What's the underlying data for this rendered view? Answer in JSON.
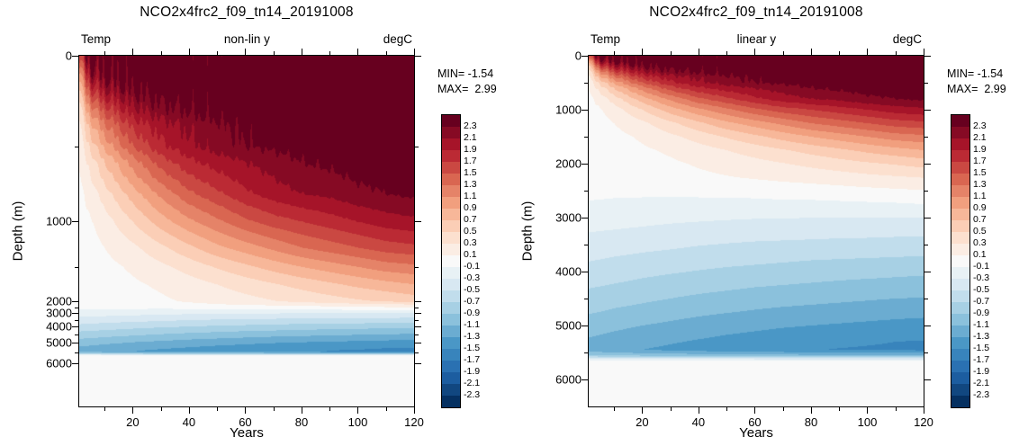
{
  "panels": [
    {
      "title": "NCO2x4frc2_f09_tn14_20191008",
      "var_tag": "Temp",
      "axis_tag": "non-lin y",
      "units_tag": "degC",
      "ylabel": "Depth (m)",
      "xlabel": "Years",
      "min_text": "MIN= -1.54",
      "max_text": "MAX=  2.99"
    },
    {
      "title": "NCO2x4frc2_f09_tn14_20191008",
      "var_tag": "Temp",
      "axis_tag": "linear y",
      "units_tag": "degC",
      "ylabel": "Depth (m)",
      "xlabel": "Years",
      "min_text": "MIN= -1.54",
      "max_text": "MAX=  2.99"
    }
  ],
  "chart_data": {
    "type": "heatmap",
    "title": "NCO2x4frc2_f09_tn14_20191008",
    "variable": "Temp",
    "units": "degC",
    "xlabel": "Years",
    "ylabel": "Depth (m)",
    "data_min": -1.54,
    "data_max": 2.99,
    "x_range": [
      1,
      120
    ],
    "x_major_ticks": [
      20,
      40,
      60,
      80,
      100,
      120
    ],
    "x_minor_ticks": [
      10,
      30,
      50,
      70,
      90,
      110
    ],
    "depth_range": [
      0,
      6500
    ],
    "depth_major_ticks": [
      0,
      1000,
      2000,
      3000,
      4000,
      5000,
      6000
    ],
    "depth_minor_ticks": [
      500,
      1500,
      2500,
      3500,
      4500,
      5500
    ],
    "contour_min": -2.3,
    "contour_max": 2.3,
    "contour_step": 0.2,
    "colorbar_tick_labels": [
      "2.3",
      "2.1",
      "1.9",
      "1.7",
      "1.5",
      "1.3",
      "1.1",
      "0.9",
      "0.7",
      "0.5",
      "0.3",
      "0.1",
      "-0.1",
      "-0.3",
      "-0.5",
      "-0.7",
      "-0.9",
      "-1.1",
      "-1.3",
      "-1.5",
      "-1.7",
      "-1.9",
      "-2.1",
      "-2.3"
    ],
    "palette_anchors": [
      "#053061",
      "#2166ac",
      "#4393c4",
      "#92c5de",
      "#d1e5f0",
      "#f9f9f9",
      "#fddbc7",
      "#f4a582",
      "#d6604d",
      "#b2182b",
      "#67001f"
    ],
    "legend_position": "right",
    "panels": [
      {
        "label": "non-lin y",
        "y_scale": "nonlinear",
        "y_control_points": [
          [
            0,
            0
          ],
          [
            100,
            0.055
          ],
          [
            200,
            0.105
          ],
          [
            300,
            0.152
          ],
          [
            400,
            0.2
          ],
          [
            500,
            0.258
          ],
          [
            600,
            0.302
          ],
          [
            700,
            0.35
          ],
          [
            800,
            0.394
          ],
          [
            1000,
            0.473
          ],
          [
            1250,
            0.547
          ],
          [
            1500,
            0.602
          ],
          [
            1750,
            0.652
          ],
          [
            2000,
            0.7
          ],
          [
            2500,
            0.718
          ],
          [
            3000,
            0.734
          ],
          [
            3500,
            0.753
          ],
          [
            4000,
            0.773
          ],
          [
            4500,
            0.794
          ],
          [
            5000,
            0.817
          ],
          [
            5500,
            0.845
          ],
          [
            6000,
            0.876
          ],
          [
            6500,
            1.0
          ]
        ]
      },
      {
        "label": "linear y",
        "y_scale": "linear"
      }
    ],
    "times": [
      0,
      5,
      10,
      20,
      30,
      40,
      50,
      60,
      70,
      80,
      90,
      100,
      110,
      120
    ],
    "depths": [
      0,
      100,
      200,
      300,
      400,
      500,
      600,
      800,
      1000,
      1250,
      1500,
      1750,
      2000,
      2250,
      2500,
      2750,
      3000,
      3250,
      3500,
      3750,
      4000,
      4250,
      4500,
      4750,
      5000,
      5150,
      5300,
      5450,
      5550,
      5650,
      6000,
      6500
    ],
    "values": [
      [
        1.6,
        2.5,
        2.6,
        2.7,
        2.75,
        2.8,
        2.82,
        2.85,
        2.87,
        2.9,
        2.9,
        2.92,
        2.95,
        2.99
      ],
      [
        0.8,
        2.1,
        2.35,
        2.55,
        2.6,
        2.65,
        2.7,
        2.72,
        2.75,
        2.78,
        2.8,
        2.8,
        2.82,
        2.85
      ],
      [
        0.4,
        1.6,
        2.0,
        2.3,
        2.45,
        2.5,
        2.55,
        2.6,
        2.62,
        2.65,
        2.67,
        2.7,
        2.7,
        2.72
      ],
      [
        0.2,
        1.15,
        1.6,
        2.05,
        2.25,
        2.35,
        2.45,
        2.5,
        2.52,
        2.55,
        2.57,
        2.6,
        2.6,
        2.62
      ],
      [
        0.12,
        0.8,
        1.25,
        1.75,
        2.0,
        2.15,
        2.25,
        2.35,
        2.4,
        2.45,
        2.5,
        2.5,
        2.52,
        2.55
      ],
      [
        0.08,
        0.55,
        0.95,
        1.5,
        1.85,
        2.05,
        2.2,
        2.3,
        2.35,
        2.4,
        2.45,
        2.5,
        2.5,
        2.5
      ],
      [
        0.05,
        0.38,
        0.7,
        1.2,
        1.6,
        1.85,
        2.0,
        2.1,
        2.2,
        2.3,
        2.35,
        2.4,
        2.4,
        2.45
      ],
      [
        0.02,
        0.18,
        0.4,
        0.8,
        1.15,
        1.45,
        1.65,
        1.85,
        2.0,
        2.1,
        2.15,
        2.25,
        2.3,
        2.35
      ],
      [
        0.0,
        0.08,
        0.2,
        0.5,
        0.8,
        1.05,
        1.25,
        1.45,
        1.6,
        1.7,
        1.8,
        1.9,
        2.0,
        2.05
      ],
      [
        0.0,
        0.03,
        0.1,
        0.25,
        0.45,
        0.65,
        0.85,
        1.0,
        1.15,
        1.3,
        1.4,
        1.5,
        1.6,
        1.65
      ],
      [
        0.0,
        0.01,
        0.04,
        0.13,
        0.25,
        0.38,
        0.52,
        0.65,
        0.78,
        0.9,
        1.0,
        1.1,
        1.2,
        1.25
      ],
      [
        0.0,
        0.0,
        0.02,
        0.07,
        0.13,
        0.21,
        0.3,
        0.39,
        0.48,
        0.57,
        0.66,
        0.75,
        0.83,
        0.9
      ],
      [
        0.0,
        0.0,
        0.0,
        0.03,
        0.07,
        0.12,
        0.17,
        0.23,
        0.29,
        0.35,
        0.41,
        0.47,
        0.52,
        0.58
      ],
      [
        0.0,
        0.0,
        0.0,
        0.01,
        0.03,
        0.06,
        0.09,
        0.12,
        0.15,
        0.18,
        0.21,
        0.25,
        0.28,
        0.31
      ],
      [
        -0.04,
        -0.04,
        -0.05,
        -0.05,
        -0.05,
        -0.04,
        -0.03,
        -0.02,
        0.0,
        0.01,
        0.03,
        0.05,
        0.07,
        0.09
      ],
      [
        -0.12,
        -0.13,
        -0.14,
        -0.15,
        -0.16,
        -0.16,
        -0.16,
        -0.16,
        -0.15,
        -0.15,
        -0.14,
        -0.13,
        -0.12,
        -0.1
      ],
      [
        -0.2,
        -0.21,
        -0.22,
        -0.24,
        -0.26,
        -0.27,
        -0.28,
        -0.29,
        -0.29,
        -0.3,
        -0.3,
        -0.3,
        -0.3,
        -0.3
      ],
      [
        -0.29,
        -0.3,
        -0.31,
        -0.33,
        -0.35,
        -0.37,
        -0.39,
        -0.4,
        -0.41,
        -0.42,
        -0.43,
        -0.43,
        -0.44,
        -0.44
      ],
      [
        -0.38,
        -0.39,
        -0.41,
        -0.44,
        -0.46,
        -0.49,
        -0.51,
        -0.53,
        -0.54,
        -0.55,
        -0.56,
        -0.57,
        -0.58,
        -0.59
      ],
      [
        -0.47,
        -0.49,
        -0.51,
        -0.54,
        -0.57,
        -0.6,
        -0.62,
        -0.64,
        -0.66,
        -0.68,
        -0.69,
        -0.7,
        -0.71,
        -0.72
      ],
      [
        -0.57,
        -0.59,
        -0.61,
        -0.65,
        -0.68,
        -0.71,
        -0.74,
        -0.76,
        -0.78,
        -0.8,
        -0.82,
        -0.83,
        -0.85,
        -0.86
      ],
      [
        -0.67,
        -0.69,
        -0.71,
        -0.75,
        -0.79,
        -0.82,
        -0.85,
        -0.88,
        -0.9,
        -0.92,
        -0.94,
        -0.96,
        -0.97,
        -0.99
      ],
      [
        -0.77,
        -0.79,
        -0.82,
        -0.86,
        -0.9,
        -0.94,
        -0.97,
        -1.0,
        -1.02,
        -1.04,
        -1.06,
        -1.08,
        -1.1,
        -1.11
      ],
      [
        -0.88,
        -0.9,
        -0.93,
        -0.97,
        -1.02,
        -1.06,
        -1.09,
        -1.12,
        -1.15,
        -1.17,
        -1.19,
        -1.21,
        -1.23,
        -1.24
      ],
      [
        -0.99,
        -1.02,
        -1.05,
        -1.1,
        -1.14,
        -1.18,
        -1.22,
        -1.25,
        -1.28,
        -1.3,
        -1.32,
        -1.34,
        -1.36,
        -1.38
      ],
      [
        -1.06,
        -1.09,
        -1.12,
        -1.17,
        -1.21,
        -1.25,
        -1.29,
        -1.32,
        -1.35,
        -1.37,
        -1.39,
        -1.41,
        -1.43,
        -1.45
      ],
      [
        -1.13,
        -1.16,
        -1.19,
        -1.24,
        -1.28,
        -1.32,
        -1.36,
        -1.39,
        -1.42,
        -1.44,
        -1.46,
        -1.48,
        -1.5,
        -1.51
      ],
      [
        -1.19,
        -1.22,
        -1.25,
        -1.3,
        -1.34,
        -1.38,
        -1.42,
        -1.45,
        -1.47,
        -1.49,
        -1.51,
        -1.52,
        -1.53,
        -1.54
      ],
      [
        -0.9,
        -0.92,
        -0.95,
        -0.98,
        -1.0,
        -1.02,
        -1.04,
        -1.05,
        -1.06,
        -1.07,
        -1.08,
        -1.08,
        -1.09,
        -1.09
      ],
      [
        -0.05,
        -0.05,
        -0.05,
        -0.05,
        -0.05,
        -0.05,
        -0.05,
        -0.05,
        -0.05,
        -0.05,
        -0.05,
        -0.05,
        -0.05,
        -0.05
      ],
      [
        0,
        0,
        0,
        0,
        0,
        0,
        0,
        0,
        0,
        0,
        0,
        0,
        0,
        0
      ],
      [
        0,
        0,
        0,
        0,
        0,
        0,
        0,
        0,
        0,
        0,
        0,
        0,
        0,
        0
      ]
    ]
  }
}
